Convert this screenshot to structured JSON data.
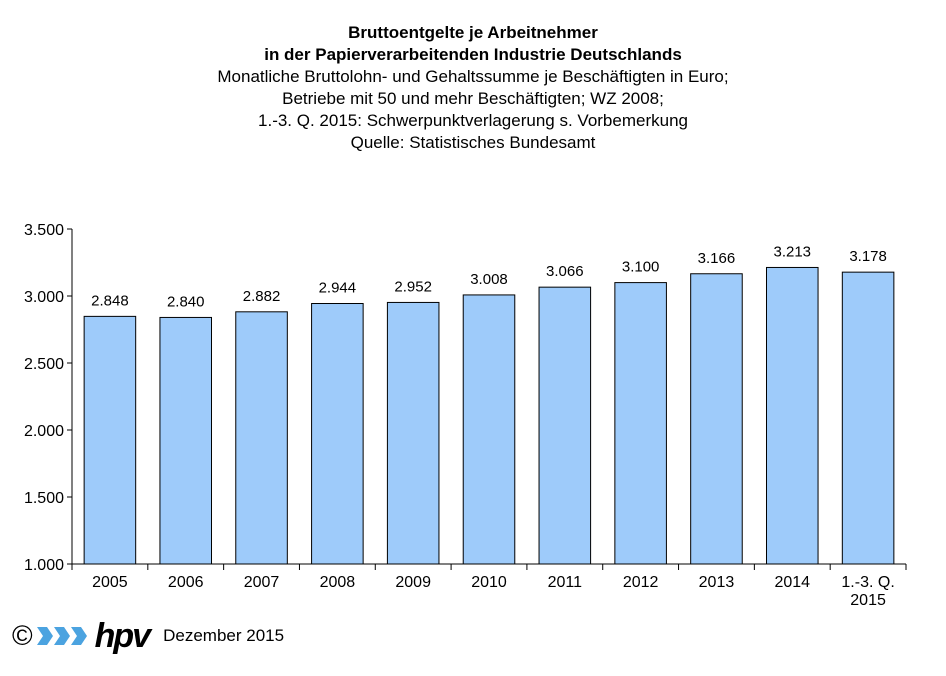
{
  "title_lines": {
    "line1": "Bruttoentgelte je Arbeitnehmer",
    "line2": "in der Papierverarbeitenden Industrie Deutschlands",
    "line3": "Monatliche Bruttolohn- und Gehaltssumme je Beschäftigten in Euro;",
    "line4": "Betriebe mit 50 und mehr Beschäftigten; WZ 2008;",
    "line5": "1.-3. Q. 2015: Schwerpunktverlagerung s. Vorbemerkung",
    "line6": "Quelle: Statistisches Bundesamt"
  },
  "chart_data": {
    "type": "bar",
    "categories": [
      "2005",
      "2006",
      "2007",
      "2008",
      "2009",
      "2010",
      "2011",
      "2012",
      "2013",
      "2014",
      "1.-3. Q.\n2015"
    ],
    "values": [
      2848,
      2840,
      2882,
      2944,
      2952,
      3008,
      3066,
      3100,
      3166,
      3213,
      3178
    ],
    "value_labels": [
      "2.848",
      "2.840",
      "2.882",
      "2.944",
      "2.952",
      "3.008",
      "3.066",
      "3.100",
      "3.166",
      "3.213",
      "3.178"
    ],
    "title": "Bruttoentgelte je Arbeitnehmer in der Papierverarbeitenden Industrie Deutschlands",
    "xlabel": "",
    "ylabel": "",
    "ylim": [
      1000,
      3500
    ],
    "yticks": [
      1000,
      1500,
      2000,
      2500,
      3000,
      3500
    ],
    "ytick_labels": [
      "1.000",
      "1.500",
      "2.000",
      "2.500",
      "3.000",
      "3.500"
    ],
    "grid": false,
    "legend": "none",
    "bar_color": "#9ECBFA"
  },
  "footer": {
    "copyright": "©",
    "brand": "hpv",
    "date": "Dezember 2015"
  },
  "colors": {
    "bar_fill": "#9ECBFA",
    "bar_edge": "#000000",
    "logo_blue": "#4BA3E0"
  }
}
